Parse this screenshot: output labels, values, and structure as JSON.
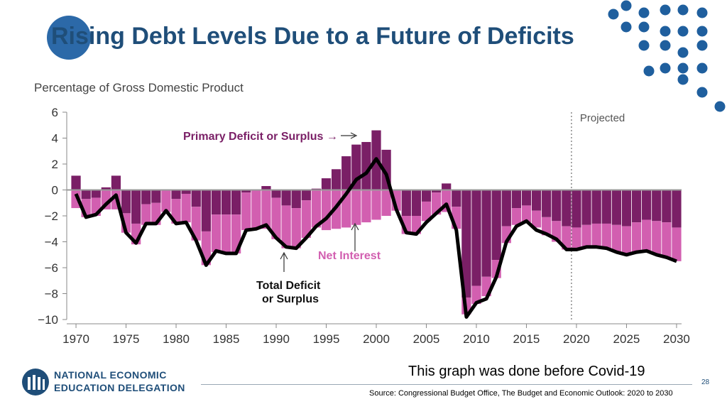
{
  "slide": {
    "title": "Rising Debt Levels Due to a Future of Deficits",
    "note": "This graph was done before Covid-19",
    "page_number": "28",
    "source": "Source: Congressional Budget Office, The Budget and Economic Outlook: 2020 to 2030",
    "logo_line1": "NATIONAL ECONOMIC",
    "logo_line2": "EDUCATION DELEGATION"
  },
  "colors": {
    "title": "#1f4e79",
    "accent_dots": "#1f5f9e",
    "primary_bar": "#7a1f66",
    "net_interest_bar": "#d25fb0",
    "total_line": "#000000",
    "zero_line": "#9a9a9a"
  },
  "chart_data": {
    "type": "bar",
    "subtitle": "Percentage of Gross Domestic Product",
    "ylim": [
      -10,
      6
    ],
    "yticks": [
      "6",
      "4",
      "2",
      "0",
      "−2",
      "−4",
      "−6",
      "−8",
      "−10"
    ],
    "ytick_values": [
      6,
      4,
      2,
      0,
      -2,
      -4,
      -6,
      -8,
      -10
    ],
    "xticks": [
      "1970",
      "1975",
      "1980",
      "1985",
      "1990",
      "1995",
      "2000",
      "2005",
      "2010",
      "2015",
      "2020",
      "2025",
      "2030"
    ],
    "xtick_values": [
      1970,
      1975,
      1980,
      1985,
      1990,
      1995,
      2000,
      2005,
      2010,
      2015,
      2020,
      2025,
      2030
    ],
    "projected_start": 2019.5,
    "projected_label": "Projected",
    "x": [
      1970,
      1971,
      1972,
      1973,
      1974,
      1975,
      1976,
      1977,
      1978,
      1979,
      1980,
      1981,
      1982,
      1983,
      1984,
      1985,
      1986,
      1987,
      1988,
      1989,
      1990,
      1991,
      1992,
      1993,
      1994,
      1995,
      1996,
      1997,
      1998,
      1999,
      2000,
      2001,
      2002,
      2003,
      2004,
      2005,
      2006,
      2007,
      2008,
      2009,
      2010,
      2011,
      2012,
      2013,
      2014,
      2015,
      2016,
      2017,
      2018,
      2019,
      2020,
      2021,
      2022,
      2023,
      2024,
      2025,
      2026,
      2027,
      2028,
      2029,
      2030
    ],
    "series": [
      {
        "name": "Primary Deficit or Surplus",
        "values": [
          1.1,
          -0.7,
          -0.6,
          0.2,
          1.1,
          -1.8,
          -2.6,
          -1.1,
          -1.0,
          0.0,
          -0.7,
          -0.3,
          -1.3,
          -3.2,
          -1.9,
          -1.9,
          -1.9,
          -0.2,
          0.0,
          0.3,
          -0.6,
          -1.2,
          -1.4,
          -0.8,
          0.1,
          0.9,
          1.6,
          2.6,
          3.5,
          3.7,
          4.6,
          3.1,
          0.0,
          -2.0,
          -2.0,
          -0.9,
          -0.2,
          0.5,
          -1.3,
          -8.3,
          -7.4,
          -6.7,
          -5.4,
          -2.8,
          -1.4,
          -1.2,
          -1.6,
          -2.1,
          -2.4,
          -2.8,
          -2.9,
          -2.7,
          -2.6,
          -2.6,
          -2.7,
          -2.8,
          -2.5,
          -2.3,
          -2.4,
          -2.5,
          -2.9
        ]
      },
      {
        "name": "Net Interest",
        "values": [
          -1.4,
          -1.4,
          -1.4,
          -1.5,
          -1.5,
          -1.5,
          -1.6,
          -1.6,
          -1.7,
          -1.7,
          -1.9,
          -2.2,
          -2.6,
          -2.6,
          -2.9,
          -3.0,
          -3.0,
          -2.9,
          -2.9,
          -3.0,
          -3.2,
          -3.3,
          -3.1,
          -2.9,
          -2.9,
          -3.1,
          -3.0,
          -2.9,
          -2.7,
          -2.5,
          -2.3,
          -2.0,
          -1.6,
          -1.4,
          -1.4,
          -1.5,
          -1.7,
          -1.7,
          -1.7,
          -1.3,
          -1.4,
          -1.5,
          -1.4,
          -1.3,
          -1.3,
          -1.3,
          -1.3,
          -1.4,
          -1.6,
          -1.8,
          -1.7,
          -1.7,
          -1.8,
          -1.9,
          -2.1,
          -2.2,
          -2.3,
          -2.4,
          -2.6,
          -2.7,
          -2.6
        ]
      },
      {
        "name": "Total Deficit or Surplus",
        "values": [
          -0.3,
          -2.1,
          -1.9,
          -1.1,
          -0.4,
          -3.3,
          -4.1,
          -2.6,
          -2.6,
          -1.6,
          -2.6,
          -2.5,
          -3.9,
          -5.8,
          -4.7,
          -4.9,
          -4.9,
          -3.1,
          -3.0,
          -2.7,
          -3.7,
          -4.4,
          -4.5,
          -3.7,
          -2.8,
          -2.2,
          -1.3,
          -0.3,
          0.8,
          1.3,
          2.4,
          1.2,
          -1.5,
          -3.3,
          -3.4,
          -2.5,
          -1.8,
          -1.1,
          -3.1,
          -9.8,
          -8.7,
          -8.4,
          -6.7,
          -4.0,
          -2.8,
          -2.4,
          -3.1,
          -3.4,
          -3.8,
          -4.6,
          -4.6,
          -4.4,
          -4.4,
          -4.5,
          -4.8,
          -5.0,
          -4.8,
          -4.7,
          -5.0,
          -5.2,
          -5.5
        ]
      }
    ],
    "annotations": [
      "Primary Deficit or Surplus →",
      "Net Interest",
      "Total Deficit",
      "or Surplus"
    ]
  }
}
